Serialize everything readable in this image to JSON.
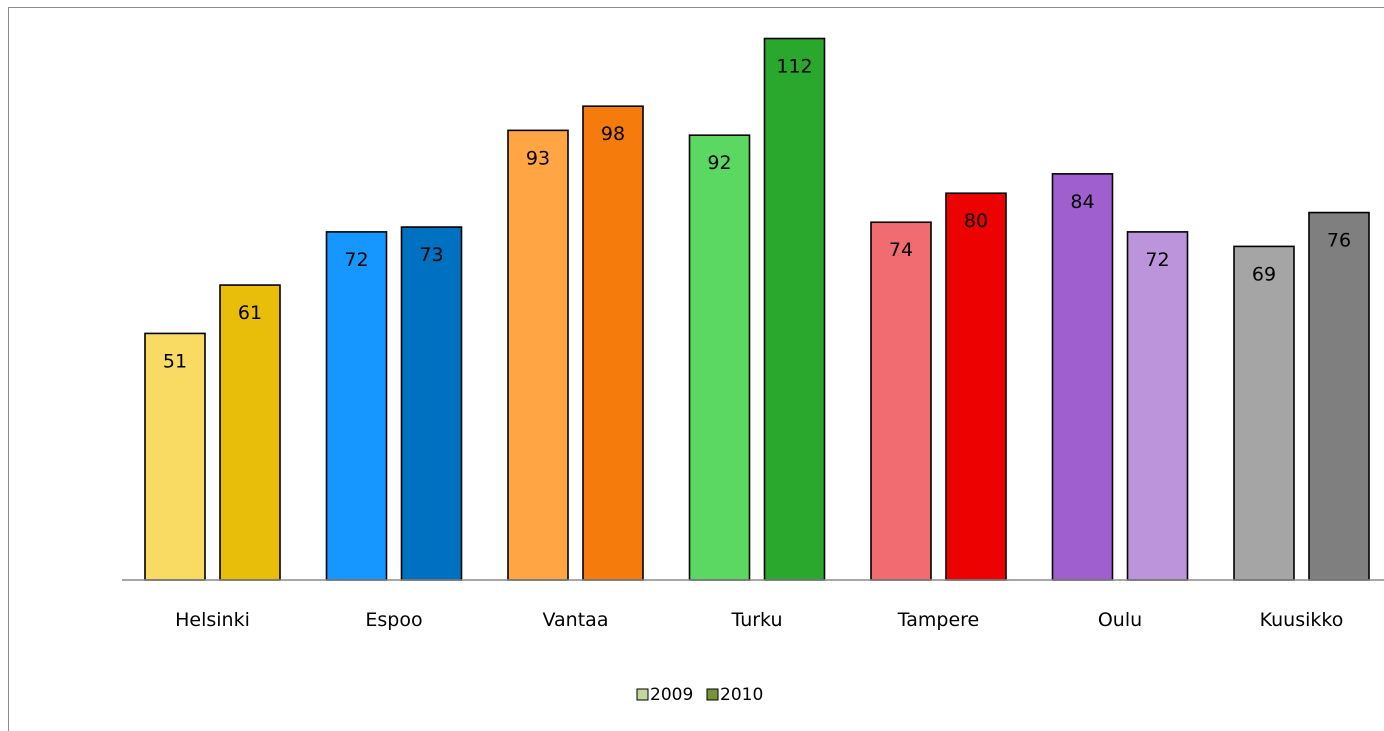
{
  "chart_data": {
    "type": "bar",
    "title": "",
    "xlabel": "",
    "ylabel": "",
    "ylim": [
      0,
      115
    ],
    "grid": false,
    "legend_position": "bottom",
    "categories": [
      "Helsinki",
      "Espoo",
      "Vantaa",
      "Turku",
      "Tampere",
      "Oulu",
      "Kuusikko"
    ],
    "series": [
      {
        "name": "2009",
        "values": [
          51,
          72,
          93,
          92,
          74,
          84,
          69
        ],
        "colors": [
          "#F9DB63",
          "#1597FF",
          "#FFA544",
          "#5AD862",
          "#F06C70",
          "#A05FCE",
          "#A5A5A5"
        ],
        "legend_color": "#C3D69B"
      },
      {
        "name": "2010",
        "values": [
          61,
          73,
          98,
          112,
          80,
          72,
          76
        ],
        "colors": [
          "#E9BE0A",
          "#0070C0",
          "#F57B0C",
          "#29A82D",
          "#EE0101",
          "#BC94DB",
          "#7F7F7F"
        ],
        "legend_color": "#77933C"
      }
    ]
  }
}
